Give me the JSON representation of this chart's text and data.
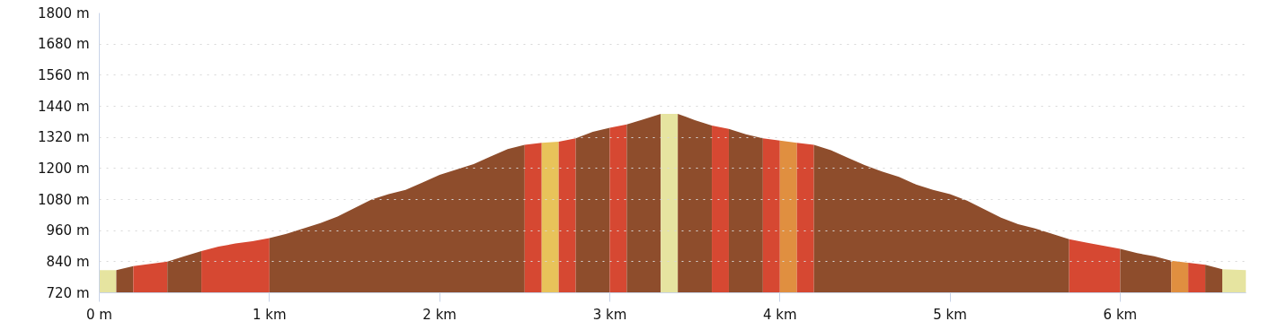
{
  "chart_data": {
    "type": "area",
    "xlim": [
      0,
      6.74
    ],
    "ylim": [
      720,
      1800
    ],
    "xticks": [
      {
        "value": 0,
        "label": "0 m"
      },
      {
        "value": 1,
        "label": "1 km"
      },
      {
        "value": 2,
        "label": "2 km"
      },
      {
        "value": 3,
        "label": "3 km"
      },
      {
        "value": 4,
        "label": "4 km"
      },
      {
        "value": 5,
        "label": "5 km"
      },
      {
        "value": 6,
        "label": "6 km"
      }
    ],
    "yticks": [
      {
        "value": 720,
        "label": "720 m"
      },
      {
        "value": 840,
        "label": "840 m"
      },
      {
        "value": 960,
        "label": "960 m"
      },
      {
        "value": 1080,
        "label": "1080 m"
      },
      {
        "value": 1200,
        "label": "1200 m"
      },
      {
        "value": 1320,
        "label": "1320 m"
      },
      {
        "value": 1440,
        "label": "1440 m"
      },
      {
        "value": 1560,
        "label": "1560 m"
      },
      {
        "value": 1680,
        "label": "1680 m"
      },
      {
        "value": 1800,
        "label": "1800 m"
      }
    ],
    "grid": "y",
    "series": [
      {
        "color": "#e6e4a0",
        "x": [
          0,
          0.1
        ],
        "values": [
          807,
          807
        ]
      },
      {
        "color": "#8e4d2c",
        "x": [
          0.1,
          0.2
        ],
        "values": [
          807,
          823
        ]
      },
      {
        "color": "#d64832",
        "x": [
          0.2,
          0.3,
          0.4
        ],
        "values": [
          823,
          832,
          840
        ]
      },
      {
        "color": "#8e4d2c",
        "x": [
          0.4,
          0.5,
          0.6
        ],
        "values": [
          840,
          861,
          881
        ]
      },
      {
        "color": "#d64832",
        "x": [
          0.6,
          0.7,
          0.8,
          0.9,
          1.0
        ],
        "values": [
          881,
          898,
          910,
          919,
          931
        ]
      },
      {
        "color": "#8e4d2c",
        "x": [
          1.0,
          1.1,
          1.2,
          1.3,
          1.4,
          1.5,
          1.6,
          1.7,
          1.8,
          1.9,
          2.0,
          2.1,
          2.2,
          2.3,
          2.4,
          2.5
        ],
        "values": [
          931,
          948,
          968,
          989,
          1014,
          1047,
          1080,
          1101,
          1117,
          1146,
          1175,
          1196,
          1217,
          1246,
          1275,
          1291
        ]
      },
      {
        "color": "#d64832",
        "x": [
          2.5,
          2.6
        ],
        "values": [
          1291,
          1299
        ]
      },
      {
        "color": "#e8c35a",
        "x": [
          2.6,
          2.7
        ],
        "values": [
          1299,
          1303
        ]
      },
      {
        "color": "#d64832",
        "x": [
          2.7,
          2.8
        ],
        "values": [
          1303,
          1316
        ]
      },
      {
        "color": "#8e4d2c",
        "x": [
          2.8,
          2.9,
          3.0
        ],
        "values": [
          1316,
          1341,
          1357
        ]
      },
      {
        "color": "#d64832",
        "x": [
          3.0,
          3.1
        ],
        "values": [
          1357,
          1370
        ]
      },
      {
        "color": "#8e4d2c",
        "x": [
          3.1,
          3.2,
          3.3
        ],
        "values": [
          1370,
          1390,
          1411
        ]
      },
      {
        "color": "#e6e4a0",
        "x": [
          3.3,
          3.4
        ],
        "values": [
          1411,
          1411
        ]
      },
      {
        "color": "#8e4d2c",
        "x": [
          3.4,
          3.5,
          3.6
        ],
        "values": [
          1411,
          1386,
          1366
        ]
      },
      {
        "color": "#d64832",
        "x": [
          3.6,
          3.7
        ],
        "values": [
          1366,
          1353
        ]
      },
      {
        "color": "#8e4d2c",
        "x": [
          3.7,
          3.8,
          3.9
        ],
        "values": [
          1353,
          1332,
          1316
        ]
      },
      {
        "color": "#d64832",
        "x": [
          3.9,
          4.0
        ],
        "values": [
          1316,
          1308
        ]
      },
      {
        "color": "#e08f40",
        "x": [
          4.0,
          4.1
        ],
        "values": [
          1308,
          1299
        ]
      },
      {
        "color": "#d64832",
        "x": [
          4.1,
          4.2
        ],
        "values": [
          1299,
          1291
        ]
      },
      {
        "color": "#8e4d2c",
        "x": [
          4.2,
          4.3,
          4.4,
          4.5,
          4.6,
          4.7,
          4.8,
          4.9,
          5.0,
          5.1,
          5.2,
          5.3,
          5.4,
          5.5,
          5.6,
          5.7
        ],
        "values": [
          1291,
          1270,
          1241,
          1212,
          1188,
          1167,
          1138,
          1117,
          1101,
          1076,
          1043,
          1010,
          985,
          968,
          948,
          927
        ]
      },
      {
        "color": "#d64832",
        "x": [
          5.7,
          5.8,
          5.9,
          6.0
        ],
        "values": [
          927,
          914,
          902,
          890
        ]
      },
      {
        "color": "#8e4d2c",
        "x": [
          6.0,
          6.1,
          6.2,
          6.3
        ],
        "values": [
          890,
          873,
          861,
          844
        ]
      },
      {
        "color": "#e08f40",
        "x": [
          6.3,
          6.4
        ],
        "values": [
          844,
          836
        ]
      },
      {
        "color": "#d64832",
        "x": [
          6.4,
          6.5
        ],
        "values": [
          836,
          828
        ]
      },
      {
        "color": "#8e4d2c",
        "x": [
          6.5,
          6.6
        ],
        "values": [
          828,
          811
        ]
      },
      {
        "color": "#e6e4a0",
        "x": [
          6.6,
          6.74
        ],
        "values": [
          811,
          807
        ]
      }
    ]
  }
}
